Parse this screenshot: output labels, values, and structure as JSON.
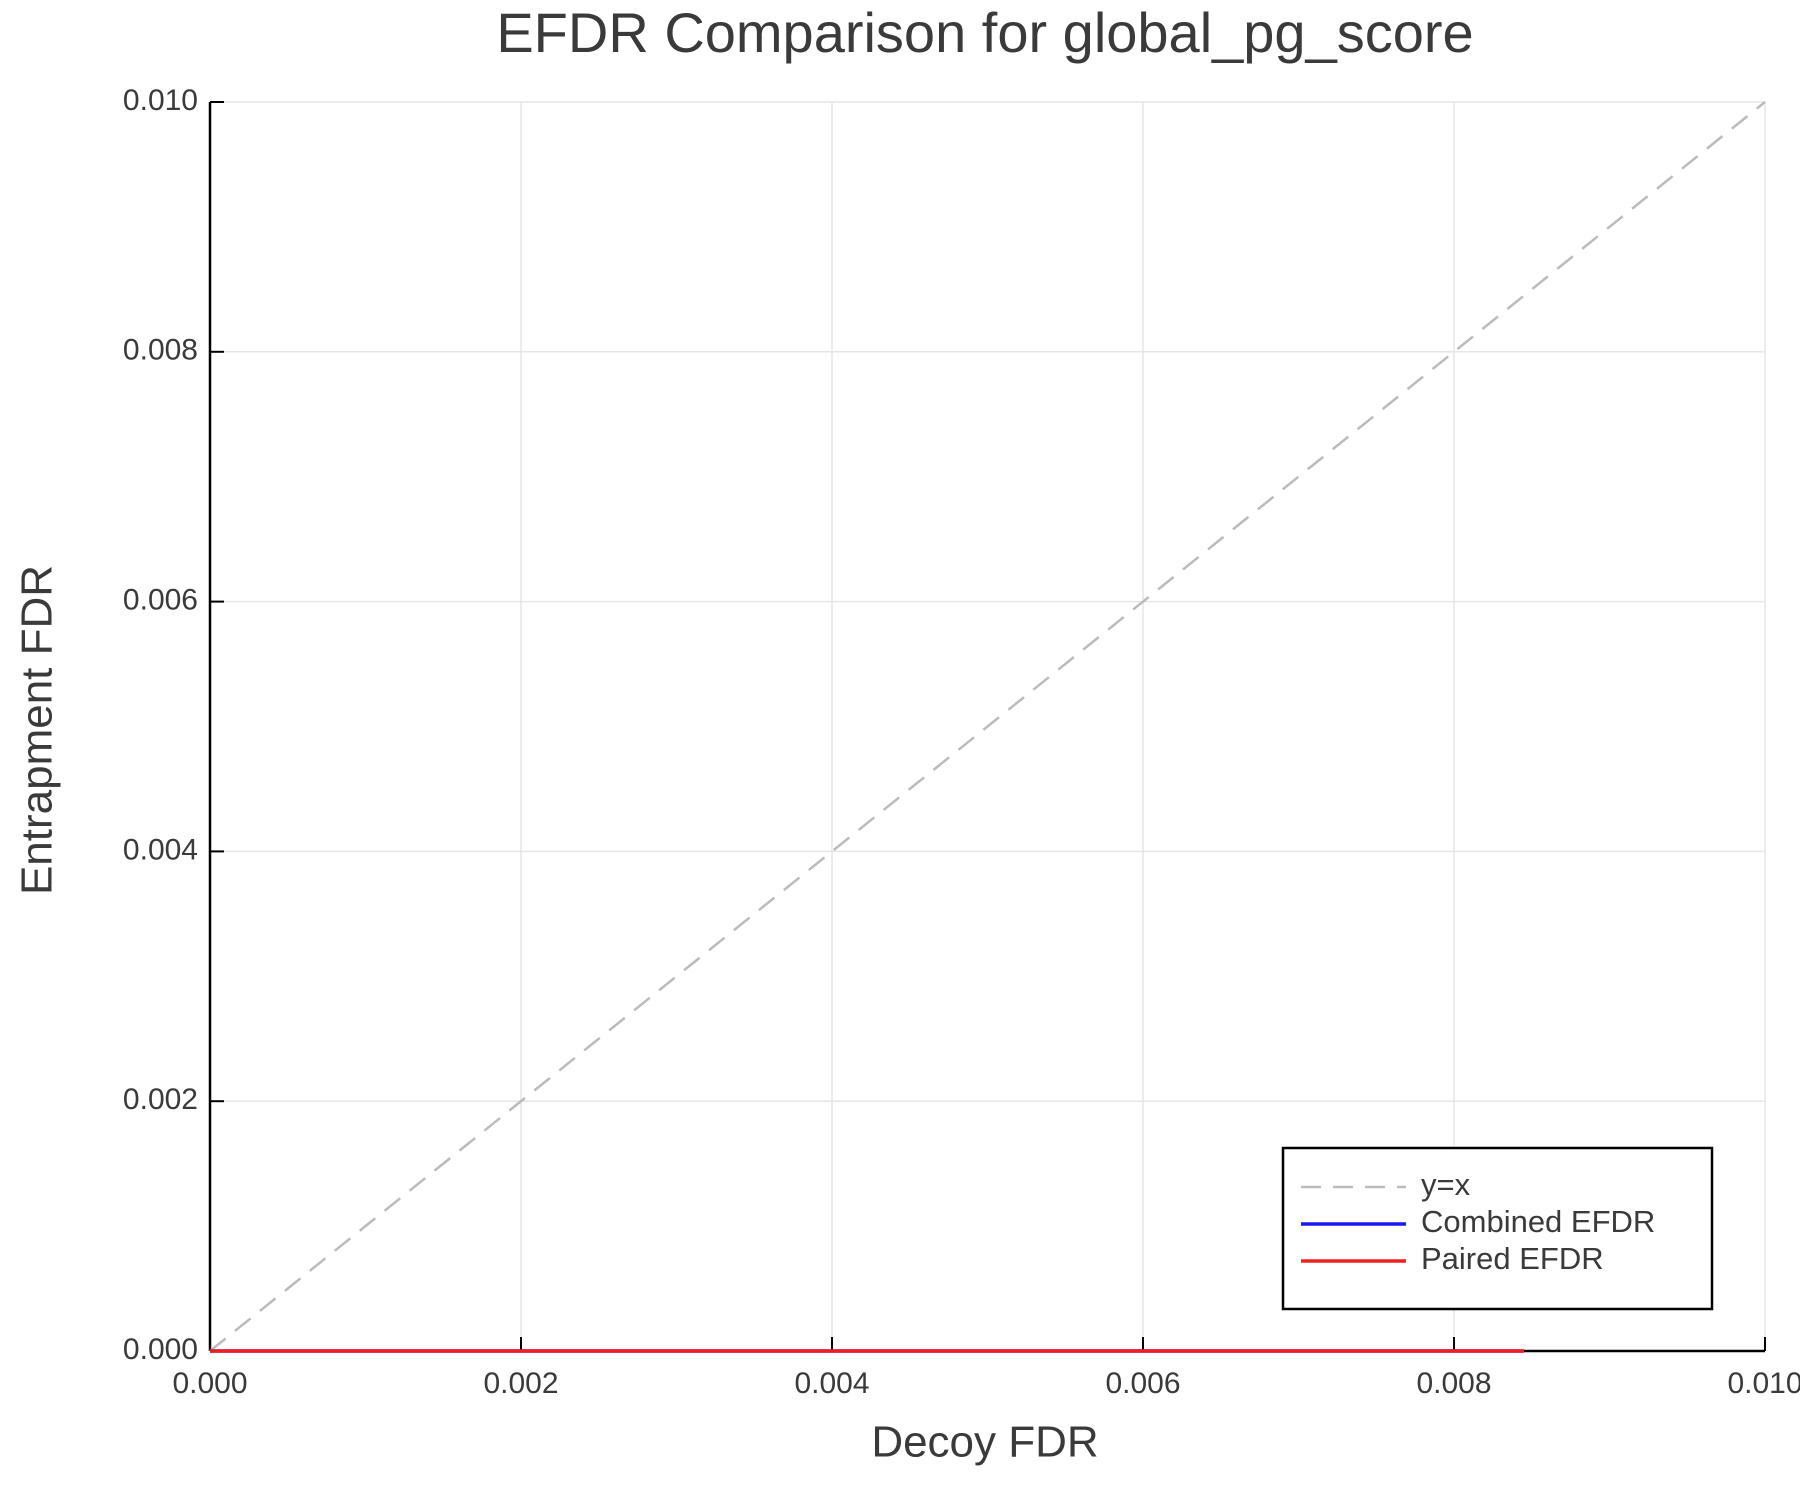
{
  "chart_data": {
    "type": "line",
    "title": "EFDR Comparison for global_pg_score",
    "xlabel": "Decoy FDR",
    "ylabel": "Entrapment FDR",
    "series": [
      {
        "name": "y=x",
        "color": "#bbbbbb",
        "style": "dashed",
        "x": [
          0,
          0.01
        ],
        "values": [
          0,
          0.01
        ]
      },
      {
        "name": "Combined EFDR",
        "color": "#1a1ae6",
        "style": "solid",
        "x": [
          0,
          0.00845
        ],
        "values": [
          0,
          0
        ]
      },
      {
        "name": "Paired EFDR",
        "color": "#f02020",
        "style": "solid",
        "x": [
          0,
          0.00845
        ],
        "values": [
          0,
          0
        ]
      }
    ],
    "xlim": [
      0,
      0.01
    ],
    "ylim": [
      0,
      0.01
    ],
    "xticks": [
      {
        "value": 0,
        "label": "0.000"
      },
      0.002,
      0.004,
      0.006,
      0.008,
      {
        "value": 0.01,
        "label": "0.010"
      }
    ],
    "yticks": [
      {
        "value": 0,
        "label": "0.000"
      },
      0.002,
      0.004,
      0.006,
      0.008,
      {
        "value": 0.01,
        "label": "0.010"
      }
    ],
    "grid": true,
    "legend": "lower right"
  }
}
